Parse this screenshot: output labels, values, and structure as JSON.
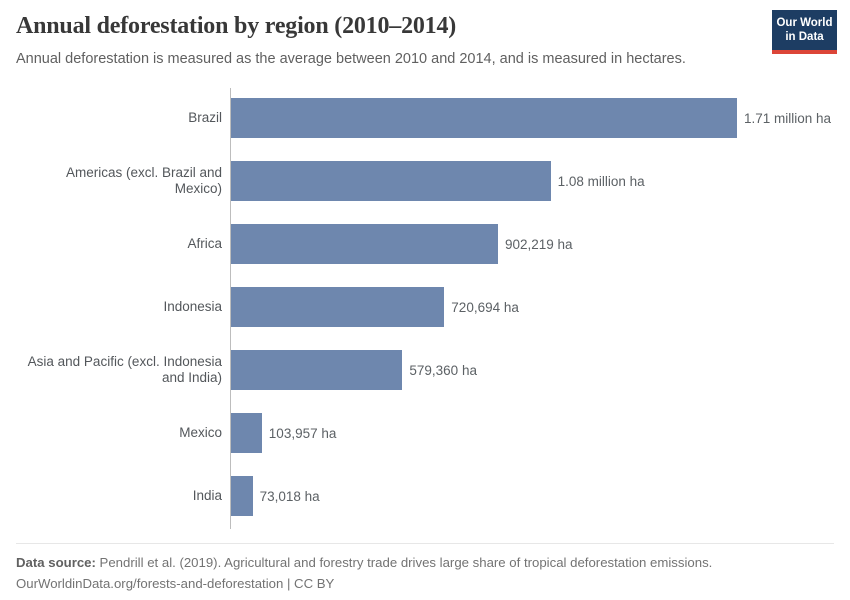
{
  "header": {
    "title": "Annual deforestation by region (2010–2014)",
    "subtitle": "Annual deforestation is measured as the average between 2010 and 2014, and is measured in hectares.",
    "logo": {
      "line1": "Our World",
      "line2": "in Data",
      "background_color": "#1d3d63",
      "accent_color": "#dc4538"
    }
  },
  "chart_data": {
    "type": "bar",
    "orientation": "horizontal",
    "title": "Annual deforestation by region (2010–2014)",
    "subtitle": "Annual deforestation is measured as the average between 2010 and 2014, and is measured in hectares.",
    "unit": "hectares",
    "categories": [
      "Brazil",
      "Americas (excl. Brazil and Mexico)",
      "Africa",
      "Indonesia",
      "Asia and Pacific (excl. Indonesia and India)",
      "Mexico",
      "India"
    ],
    "values": [
      1710000,
      1080000,
      902219,
      720694,
      579360,
      103957,
      73018
    ],
    "value_labels": [
      "1.71 million ha",
      "1.08 million ha",
      "902,219 ha",
      "720,694 ha",
      "579,360 ha",
      "103,957 ha",
      "73,018 ha"
    ],
    "bar_color": "#6e87ae",
    "axis_line_color": "#bdbdbd",
    "xlim": [
      0,
      1710000
    ],
    "grid": false,
    "legend": false
  },
  "footer": {
    "datasource_label": "Data source:",
    "datasource_text": " Pendrill et al. (2019). Agricultural and forestry trade drives large share of tropical deforestation emissions.",
    "link_line": "OurWorldinData.org/forests-and-deforestation | CC BY"
  }
}
